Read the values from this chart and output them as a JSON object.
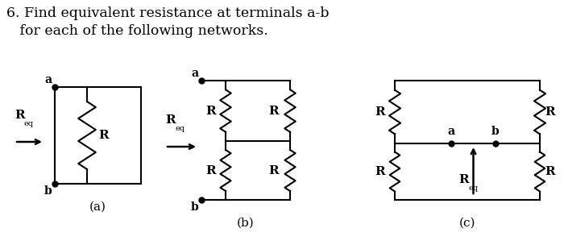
{
  "title_line1": "6. Find equivalent resistance at terminals a-b",
  "title_line2": "   for each of the following networks.",
  "background_color": "#ffffff",
  "line_color": "#000000",
  "label_a": "(a)",
  "label_b": "(b)",
  "label_c": "(c)"
}
